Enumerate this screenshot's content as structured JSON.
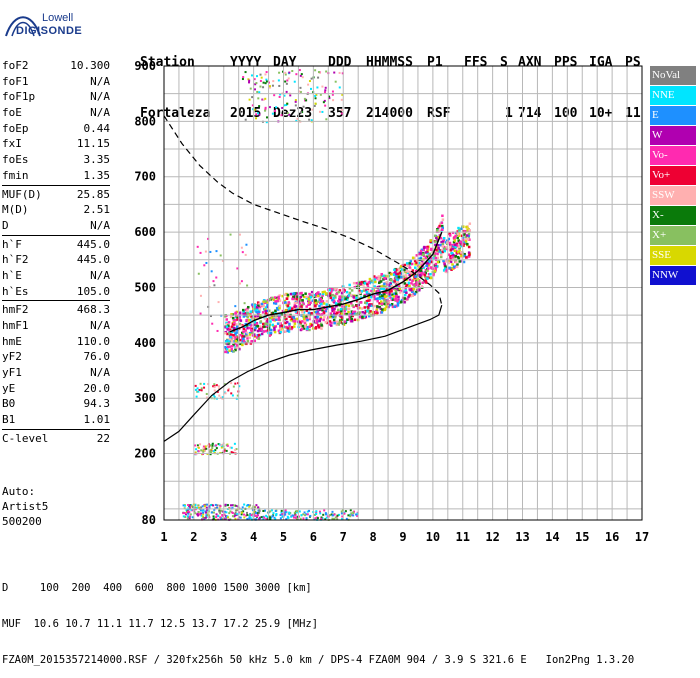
{
  "logo": {
    "line1": "Lowell",
    "line2": "DIGISONDE"
  },
  "header": {
    "labels": [
      "Station",
      "YYYY",
      "DAY",
      "DDD",
      "HHMMSS",
      "P1",
      "FFS",
      "S",
      "AXN",
      "PPS",
      "IGA",
      "PS"
    ],
    "values": [
      "Fortaleza",
      "2015",
      "Dez23",
      "357",
      "214000",
      "RSF",
      "1",
      "714",
      "100",
      "10+",
      "11"
    ]
  },
  "params": [
    {
      "k": "foF2",
      "v": "10.300"
    },
    {
      "k": "foF1",
      "v": "N/A"
    },
    {
      "k": "foF1p",
      "v": "N/A"
    },
    {
      "k": "foE",
      "v": "N/A"
    },
    {
      "k": "foEp",
      "v": "0.44"
    },
    {
      "k": "fxI",
      "v": "11.15"
    },
    {
      "k": "foEs",
      "v": "3.35"
    },
    {
      "k": "fmin",
      "v": "1.35"
    },
    {
      "k": "MUF(D)",
      "v": "25.85"
    },
    {
      "k": "M(D)",
      "v": "2.51"
    },
    {
      "k": "D",
      "v": "N/A"
    },
    {
      "k": "h`F",
      "v": "445.0"
    },
    {
      "k": "h`F2",
      "v": "445.0"
    },
    {
      "k": "h`E",
      "v": "N/A"
    },
    {
      "k": "h`Es",
      "v": "105.0"
    },
    {
      "k": "hmF2",
      "v": "468.3"
    },
    {
      "k": "hmF1",
      "v": "N/A"
    },
    {
      "k": "hmE",
      "v": "110.0"
    },
    {
      "k": "yF2",
      "v": "76.0"
    },
    {
      "k": "yF1",
      "v": "N/A"
    },
    {
      "k": "yE",
      "v": "20.0"
    },
    {
      "k": "B0",
      "v": "94.3"
    },
    {
      "k": "B1",
      "v": "1.01"
    },
    {
      "k": "C-level",
      "v": "22"
    }
  ],
  "auto": [
    "Auto:",
    "Artist5",
    "500200"
  ],
  "legend": [
    {
      "label": "NoVal",
      "color": "#808080"
    },
    {
      "label": "NNE",
      "color": "#00e5ff"
    },
    {
      "label": "E",
      "color": "#1e90ff"
    },
    {
      "label": "W",
      "color": "#b000b0"
    },
    {
      "label": "Vo-",
      "color": "#ff2ab0"
    },
    {
      "label": "Vo+",
      "color": "#ee0033"
    },
    {
      "label": "SSW",
      "color": "#ffb0b0"
    },
    {
      "label": "X-",
      "color": "#0a7a0a"
    },
    {
      "label": "X+",
      "color": "#88c060"
    },
    {
      "label": "SSE",
      "color": "#d8d800"
    },
    {
      "label": "NNW",
      "color": "#1010d0"
    }
  ],
  "chart_data": {
    "type": "scatter",
    "xlim": [
      1,
      17
    ],
    "ylim": [
      80,
      900
    ],
    "xticks": [
      1,
      2,
      3,
      4,
      5,
      6,
      7,
      8,
      9,
      10,
      11,
      12,
      13,
      14,
      15,
      16,
      17
    ],
    "yticks": [
      80,
      200,
      300,
      400,
      500,
      600,
      700,
      800,
      900
    ],
    "profile": {
      "x": [
        1.0,
        1.6,
        2.2,
        2.8,
        3.3,
        4.0,
        4.8,
        5.6,
        6.4,
        7.2,
        8.0,
        8.8,
        9.4,
        9.9,
        10.2,
        10.3,
        10.2,
        9.9,
        9.3,
        8.4,
        7.6,
        6.8,
        6.0,
        5.2,
        4.5,
        3.8,
        3.2,
        2.6,
        2.0,
        1.5,
        1.0
      ],
      "y": [
        810,
        760,
        720,
        690,
        670,
        650,
        635,
        620,
        606,
        590,
        570,
        545,
        525,
        505,
        490,
        468,
        450,
        442,
        430,
        412,
        403,
        396,
        388,
        378,
        365,
        348,
        330,
        305,
        270,
        240,
        222
      ]
    },
    "trace": {
      "x": [
        3.2,
        3.6,
        4.0,
        4.5,
        5.0,
        5.5,
        6.0,
        6.5,
        7.0,
        7.5,
        8.0,
        8.5,
        9.0,
        9.5,
        10.0,
        10.3
      ],
      "y": [
        420,
        428,
        440,
        450,
        455,
        460,
        460,
        465,
        470,
        478,
        488,
        495,
        510,
        530,
        560,
        600
      ]
    }
  },
  "footer": {
    "line1": "D     100  200  400  600  800 1000 1500 3000 [km]",
    "line2": "MUF  10.6 10.7 11.1 11.7 12.5 13.7 17.2 25.9 [MHz]",
    "line3": "FZA0M_2015357214000.RSF / 320fx256h 50 kHz 5.0 km / DPS-4 FZA0M 904 / 3.9 S 321.6 E   Ion2Png 1.3.20"
  }
}
